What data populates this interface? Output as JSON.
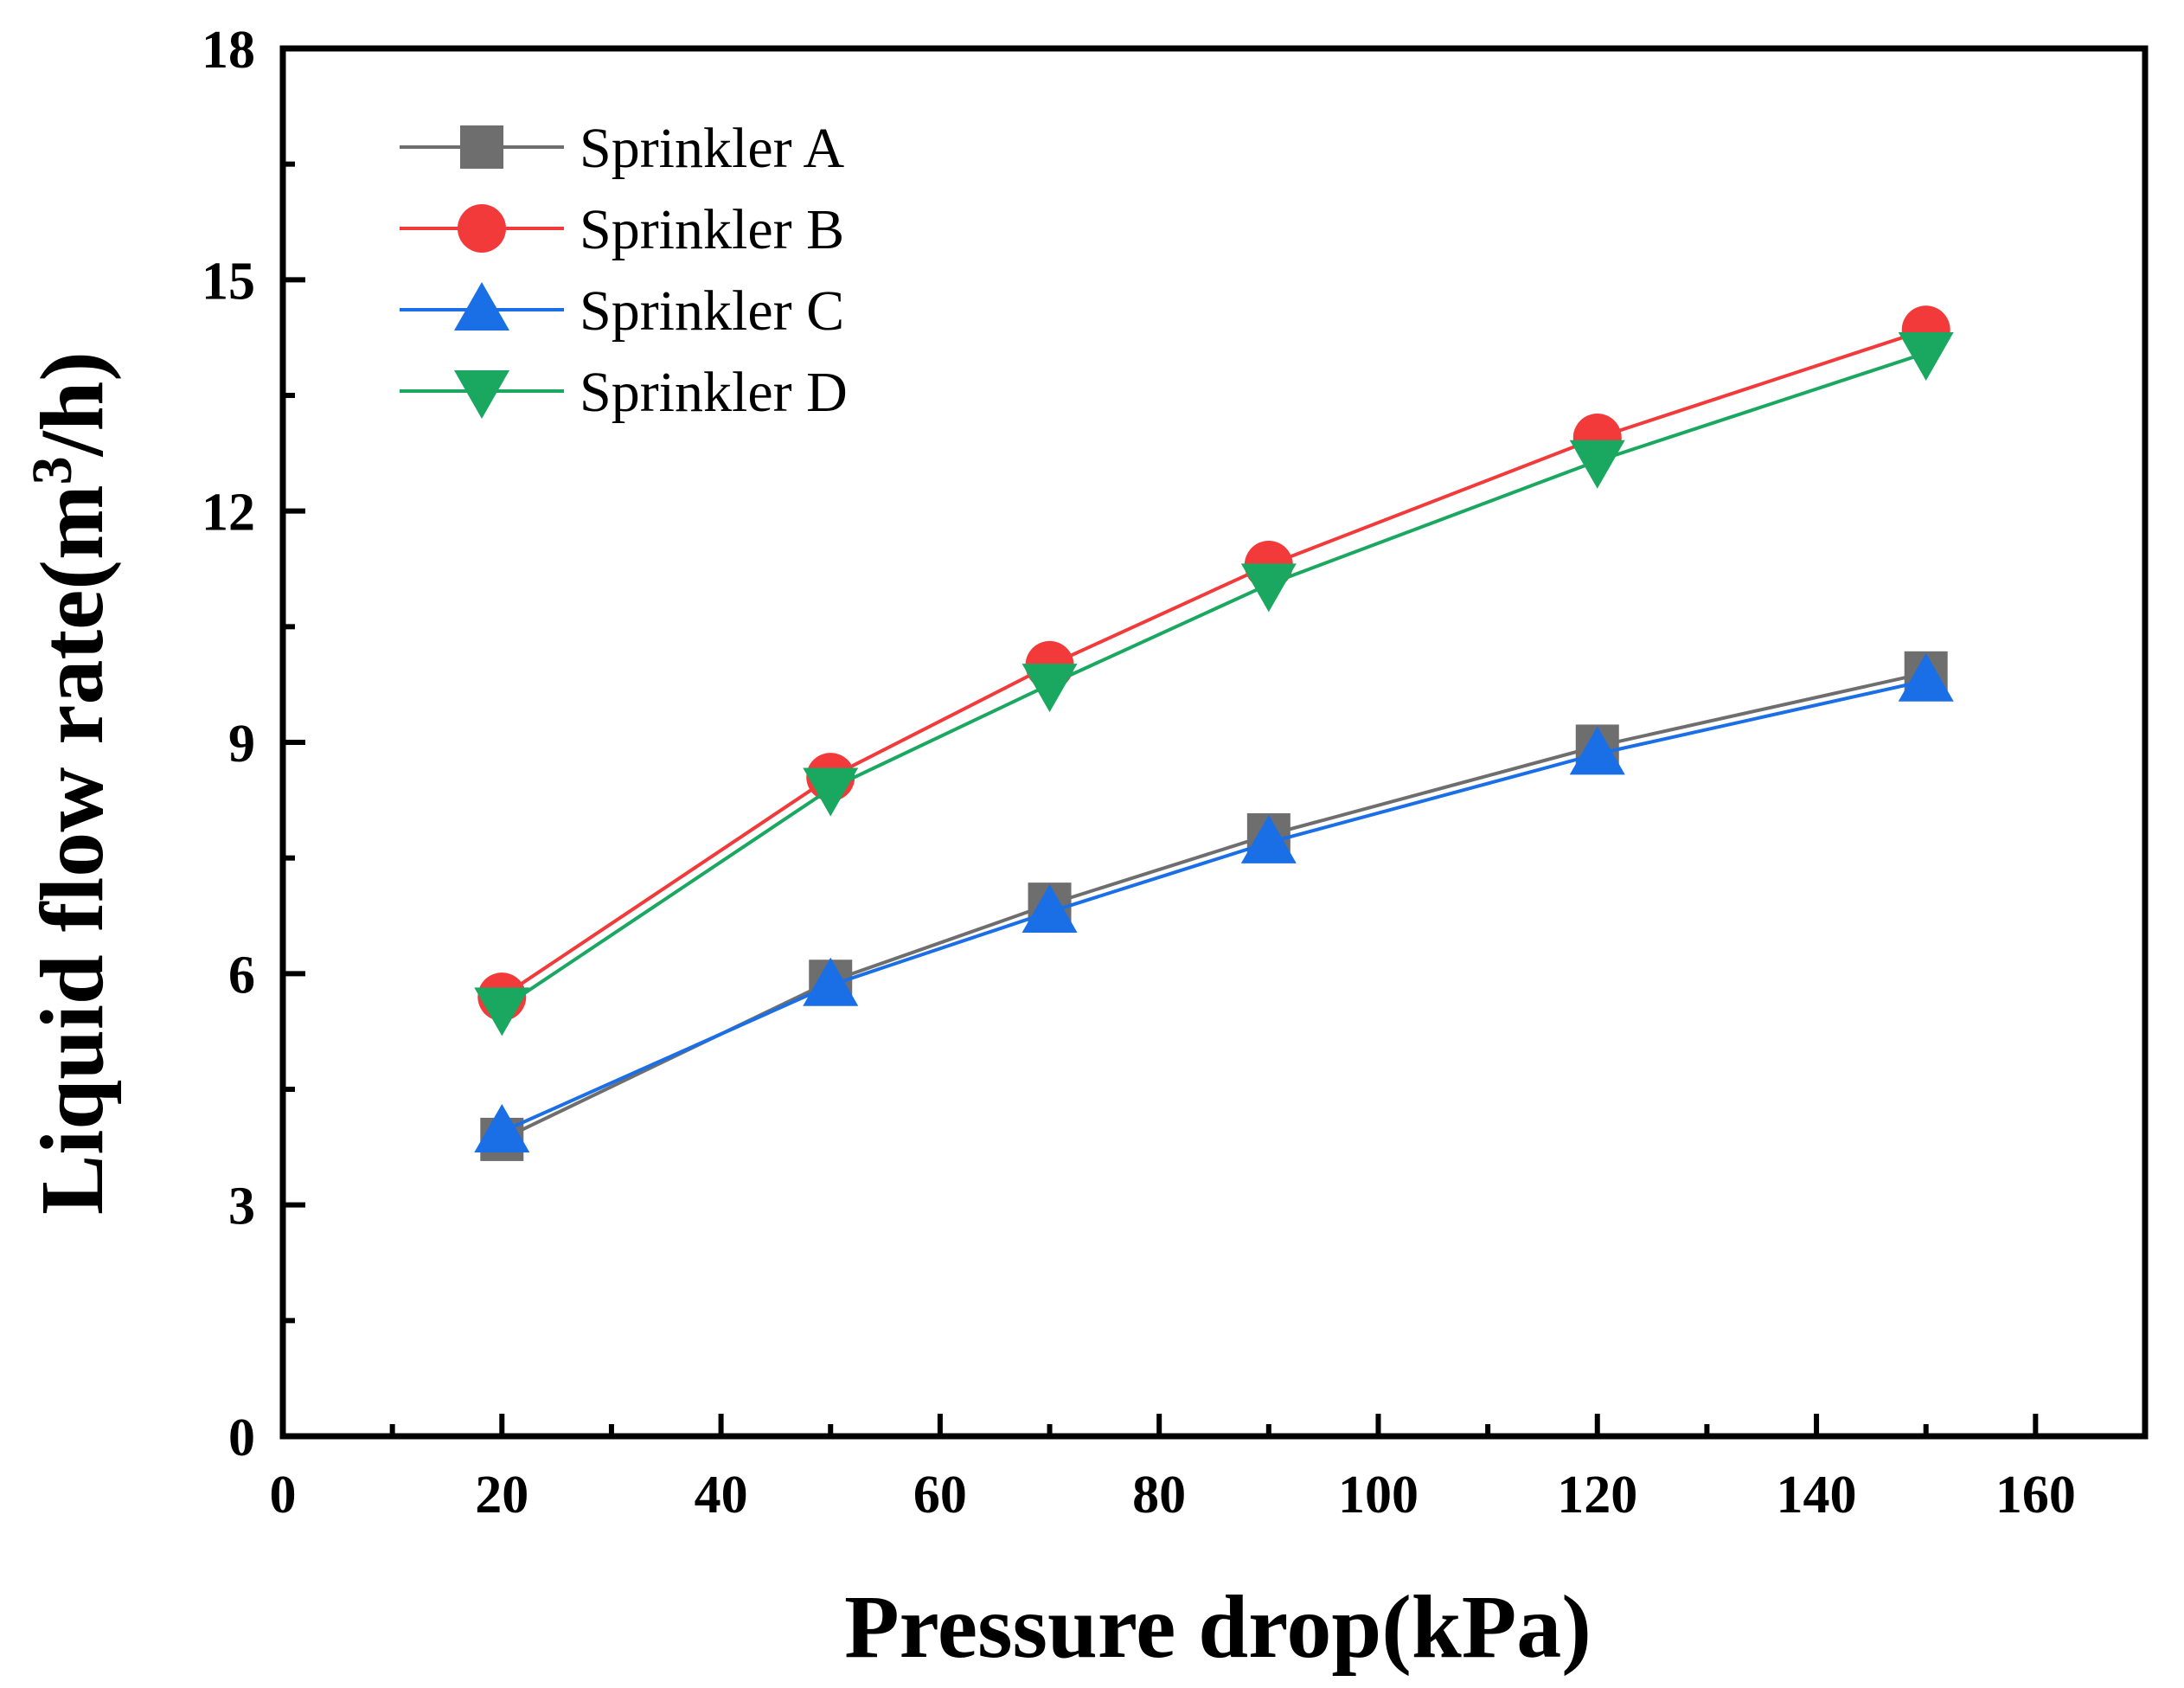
{
  "chart_data": {
    "type": "line",
    "title": "",
    "xlabel": "Pressure drop(kPa)",
    "ylabel_main": "Liquid flow rate(m",
    "ylabel_sup": "3",
    "ylabel_tail": "/h)",
    "xlim": [
      0,
      170
    ],
    "ylim": [
      0,
      18
    ],
    "xticks": [
      0,
      20,
      40,
      60,
      80,
      100,
      120,
      140,
      160
    ],
    "yticks": [
      0,
      3,
      6,
      9,
      12,
      15,
      18
    ],
    "x": [
      20,
      50,
      70,
      90,
      120,
      150
    ],
    "grid": false,
    "legend_position": "top-left",
    "series": [
      {
        "name": "Sprinkler A",
        "color": "#6e6e6e",
        "marker": "square",
        "values": [
          3.85,
          5.9,
          6.9,
          7.8,
          8.95,
          9.9
        ]
      },
      {
        "name": "Sprinkler B",
        "color": "#f23a3a",
        "marker": "circle",
        "values": [
          5.7,
          8.55,
          10.0,
          11.3,
          12.95,
          14.35
        ]
      },
      {
        "name": "Sprinkler C",
        "color": "#1a6ee6",
        "marker": "triangle-up",
        "values": [
          3.95,
          5.85,
          6.8,
          7.7,
          8.85,
          9.8
        ]
      },
      {
        "name": "Sprinkler D",
        "color": "#1aa860",
        "marker": "triangle-down",
        "values": [
          5.55,
          8.4,
          9.75,
          11.05,
          12.65,
          14.05
        ]
      }
    ]
  }
}
